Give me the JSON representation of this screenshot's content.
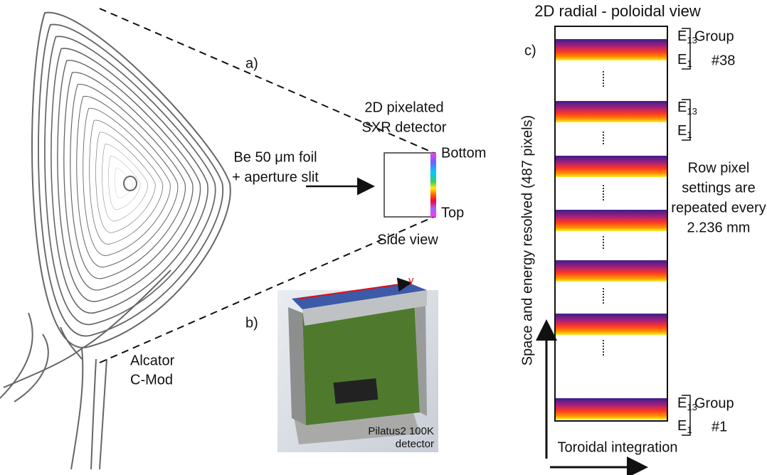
{
  "panels": {
    "a": {
      "label": "a)",
      "detector_title": [
        "2D pixelated",
        "SXR detector"
      ],
      "foil": [
        "Be 50 μm foil",
        "+ aperture slit"
      ],
      "bottom": "Bottom",
      "top": "Top",
      "side_view": "Side view",
      "machine": [
        "Alcator",
        "C-Mod"
      ]
    },
    "b": {
      "label": "b)",
      "axis_y": "y",
      "caption": [
        "Pilatus2 100K",
        "detector"
      ]
    },
    "c": {
      "label": "c)",
      "title": "2D radial - poloidal view",
      "y_axis": "Space and energy resolved (487 pixels)",
      "x_axis": "Toroidal integration",
      "groups": [
        {
          "top": {
            "letter": "E",
            "sub": "13"
          },
          "bottom": {
            "letter": "E",
            "sub": "1"
          },
          "name": [
            "Group",
            "#38"
          ]
        },
        {
          "top": {
            "letter": "E",
            "sub": "13"
          },
          "bottom": {
            "letter": "E",
            "sub": "1"
          }
        },
        {
          "top": {
            "letter": "E",
            "sub": "13"
          },
          "bottom": {
            "letter": "E",
            "sub": "1"
          },
          "name": [
            "Group",
            "#1"
          ]
        }
      ],
      "note": [
        "Row pixel",
        "settings are",
        "repeated every",
        "2.236 mm"
      ]
    }
  }
}
